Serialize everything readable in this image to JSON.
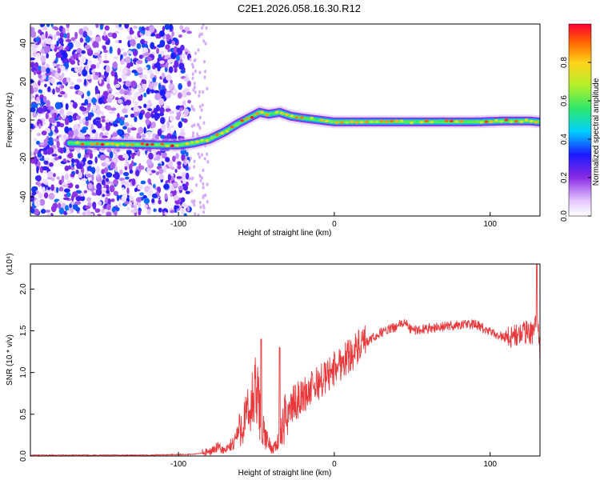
{
  "title": "C2E1.2026.058.16.30.R12",
  "colors": {
    "signal": "#e8393c",
    "axis": "#000000",
    "background": "#ffffff"
  },
  "chart_data": [
    {
      "type": "heatmap",
      "xlabel": "Height of straight line (km)",
      "ylabel": "Frequency (Hz)",
      "xlim": [
        -195,
        132
      ],
      "ylim": [
        -50,
        50
      ],
      "x_ticks": [
        -100,
        0,
        100
      ],
      "x_tick_labels": [
        "-100",
        "0",
        "100"
      ],
      "y_ticks": [
        -40,
        -20,
        0,
        20,
        40
      ],
      "y_tick_labels": [
        "-40",
        "-20",
        "0",
        "20",
        "40"
      ],
      "noise_region_x": [
        -195,
        -93
      ],
      "ridge": {
        "x": [
          -170,
          -140,
          -110,
          -100,
          -90,
          -80,
          -70,
          -62,
          -55,
          -48,
          -42,
          -35,
          -28,
          -20,
          -10,
          0,
          10,
          30,
          60,
          90,
          110,
          125,
          132
        ],
        "freq": [
          -12,
          -12.5,
          -13,
          -13,
          -12,
          -10,
          -6,
          -2,
          1,
          4,
          3,
          4,
          2,
          1,
          0,
          -1,
          -1,
          -1,
          -1,
          -1,
          -0.5,
          -0.5,
          -1
        ]
      },
      "colorbar": {
        "label": "Normalized spectral amplitude",
        "range": [
          0,
          1
        ],
        "ticks": [
          0.0,
          0.2,
          0.4,
          0.6,
          0.8
        ],
        "tick_labels": [
          "0.0",
          "0.2",
          "0.4",
          "0.6",
          "0.8"
        ]
      }
    },
    {
      "type": "line",
      "xlabel": "Height of straight line (km)",
      "ylabel": "SNR (10 * v/v)",
      "scale_label": "(x10⁴)",
      "xlim": [
        -195,
        132
      ],
      "ylim": [
        0,
        2.3
      ],
      "x_ticks": [
        -100,
        0,
        100
      ],
      "x_tick_labels": [
        "-100",
        "0",
        "100"
      ],
      "y_ticks": [
        0,
        0.5,
        1.0,
        1.5,
        2.0
      ],
      "y_tick_labels": [
        "0.0",
        "0.5",
        "1.0",
        "1.5",
        "2.0"
      ],
      "series": [
        {
          "name": "SNR",
          "x": [
            -195,
            -120,
            -90,
            -80,
            -75,
            -70,
            -65,
            -60,
            -55,
            -50,
            -45,
            -40,
            -35,
            -30,
            -25,
            -20,
            -15,
            -10,
            -5,
            0,
            10,
            20,
            30,
            40,
            45,
            50,
            60,
            70,
            80,
            90,
            100,
            110,
            120,
            128,
            130,
            132
          ],
          "values": [
            0.01,
            0.01,
            0.02,
            0.05,
            0.1,
            0.06,
            0.15,
            0.35,
            0.5,
            0.75,
            0.25,
            0.08,
            0.2,
            0.55,
            0.65,
            0.72,
            0.8,
            0.88,
            0.95,
            1.05,
            1.22,
            1.35,
            1.48,
            1.55,
            1.6,
            1.5,
            1.53,
            1.55,
            1.57,
            1.58,
            1.48,
            1.42,
            1.45,
            1.5,
            1.65,
            1.3
          ],
          "spikes": [
            {
              "x": -47,
              "value": 1.4
            },
            {
              "x": -35,
              "value": 1.3
            },
            {
              "x": 130,
              "value": 2.3
            }
          ]
        }
      ]
    }
  ]
}
